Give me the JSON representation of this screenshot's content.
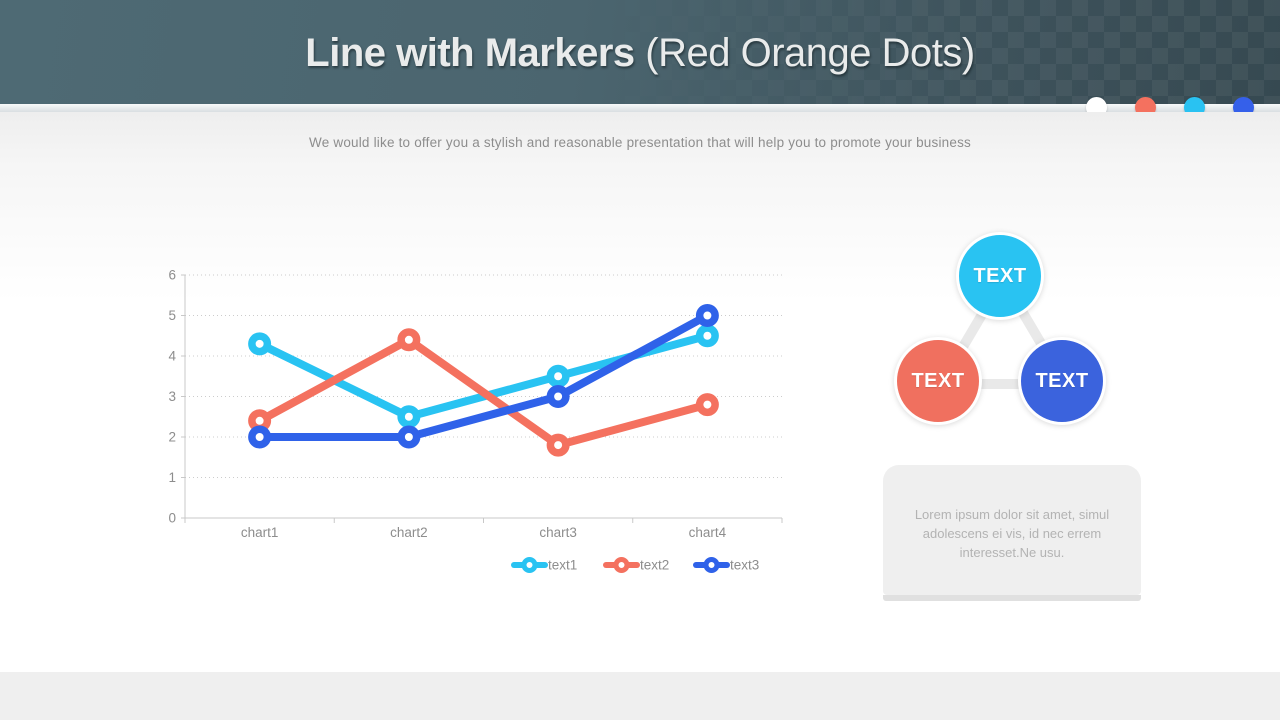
{
  "slide": {
    "title_bold": "Line with Markers",
    "title_regular": " (Red Orange Dots)",
    "subtitle": "We would like to offer you a stylish and reasonable presentation that will help you to promote your business",
    "header_color_left": "#4e6a74",
    "header_color_right": "#364951",
    "pager_dots": [
      "#ffffff",
      "#f4715f",
      "#29c2f2",
      "#3560ea"
    ]
  },
  "chart_data": {
    "type": "line",
    "title": "",
    "categories": [
      "chart1",
      "chart2",
      "chart3",
      "chart4"
    ],
    "series": [
      {
        "name": "text1",
        "color": "#29c3f2",
        "values": [
          4.3,
          2.5,
          3.5,
          4.5
        ]
      },
      {
        "name": "text2",
        "color": "#f4715f",
        "values": [
          2.4,
          4.4,
          1.8,
          2.8
        ]
      },
      {
        "name": "text3",
        "color": "#2f62e9",
        "values": [
          2,
          2,
          3,
          5
        ]
      }
    ],
    "ylim": [
      0,
      6
    ],
    "ytick_step": 1,
    "yticks": [
      0,
      1,
      2,
      3,
      4,
      5,
      6
    ],
    "grid": "horizontal-dotted",
    "marker": "circle-donut",
    "legend_position": "bottom-right",
    "axis_color": "#c8c8c8",
    "grid_color": "#cccccc",
    "label_color": "#8d8d8d"
  },
  "diagram": {
    "connector_color": "#e9e9e9",
    "nodes": [
      {
        "label": "TEXT",
        "color": "#29c3f2"
      },
      {
        "label": "TEXT",
        "color": "#f0705f"
      },
      {
        "label": "TEXT",
        "color": "#3b63dd"
      }
    ]
  },
  "note": {
    "text": "Lorem ipsum dolor sit amet, simul\nadolescens ei vis, id nec errem\ninteresset.Ne usu."
  }
}
